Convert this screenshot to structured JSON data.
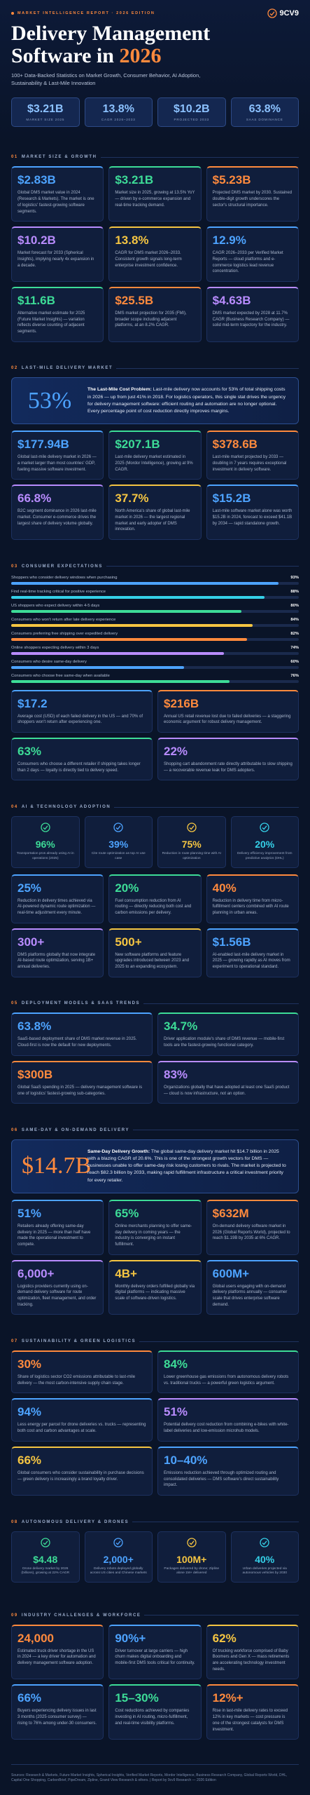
{
  "header": {
    "eyebrow": "MARKET INTELLIGENCE REPORT · 2026 EDITION",
    "logo": "9CV9",
    "title": "Delivery Management Software in",
    "title_year": "2026",
    "subtitle": "100+ Data-Backed Statistics on Market Growth, Consumer Behavior, AI Adoption, Sustainability & Last-Mile Innovation",
    "kpis": [
      {
        "value": "$3.21B",
        "label": "MARKET SIZE 2025"
      },
      {
        "value": "13.8%",
        "label": "CAGR 2026–2033"
      },
      {
        "value": "$10.2B",
        "label": "PROJECTED 2033"
      },
      {
        "value": "63.8%",
        "label": "SAAS DOMINANCE"
      }
    ]
  },
  "sections": [
    {
      "number": "01",
      "title": "MARKET SIZE & GROWTH",
      "cards": [
        {
          "value": "$2.83B",
          "color": "#4da3ff",
          "text": "Global DMS market value in 2024 (Research & Markets). The market is one of logistics' fastest-growing software segments."
        },
        {
          "value": "$3.21B",
          "color": "#3ddc97",
          "text": "Market size in 2025, growing at 13.5% YoY — driven by e-commerce expansion and real-time tracking demand."
        },
        {
          "value": "$5.23B",
          "color": "#ff8a3d",
          "text": "Projected DMS market by 2030. Sustained double-digit growth underscores the sector's structural importance."
        },
        {
          "value": "$10.2B",
          "color": "#b98cff",
          "text": "Market forecast for 2033 (Spherical Insights), implying nearly 4x expansion in a decade."
        },
        {
          "value": "13.8%",
          "color": "#f5c542",
          "text": "CAGR for DMS market 2026–2033. Consistent growth signals long-term enterprise investment confidence."
        },
        {
          "value": "12.9%",
          "color": "#4da3ff",
          "text": "CAGR 2026–2033 per Verified Market Reports — cloud platforms and e-commerce logistics lead revenue concentration."
        },
        {
          "value": "$11.6B",
          "color": "#3ddc97",
          "text": "Alternative market estimate for 2025 (Future Market Insights) — variation reflects diverse counting of adjacent segments."
        },
        {
          "value": "$25.5B",
          "color": "#ff8a3d",
          "text": "DMS market projection for 2035 (FMI), broader scope including adjacent platforms, at an 8.2% CAGR."
        },
        {
          "value": "$4.63B",
          "color": "#b98cff",
          "text": "DMS market expected by 2028 at 11.7% CAGR (Business Research Company) — solid mid-term trajectory for the industry."
        }
      ]
    },
    {
      "number": "02",
      "title": "LAST-MILE DELIVERY MARKET",
      "callout": {
        "big": "53%",
        "color": "#4da3ff",
        "lead": "The Last-Mile Cost Problem:",
        "text": "Last-mile delivery now accounts for 53% of total shipping costs in 2026 — up from just 41% in 2018. For logistics operators, this single stat drives the urgency for delivery management software: efficient routing and automation are no longer optional. Every percentage point of cost reduction directly improves margins."
      },
      "cards": [
        {
          "value": "$177.94B",
          "color": "#4da3ff",
          "text": "Global last-mile delivery market in 2026 — a market larger than most countries' GDP, fueling massive software investment."
        },
        {
          "value": "$207.1B",
          "color": "#3ddc97",
          "text": "Last-mile delivery market estimated in 2025 (Mordor Intelligence), growing at 9% CAGR."
        },
        {
          "value": "$378.6B",
          "color": "#ff8a3d",
          "text": "Last-mile market projected by 2033 — doubling in 7 years requires exceptional investment in delivery software."
        },
        {
          "value": "66.8%",
          "color": "#b98cff",
          "text": "B2C segment dominance in 2026 last-mile market. Consumer e-commerce drives the largest share of delivery volume globally."
        },
        {
          "value": "37.7%",
          "color": "#f5c542",
          "text": "North America's share of global last-mile market in 2026 — the largest regional market and early adopter of DMS innovation."
        },
        {
          "value": "$15.2B",
          "color": "#4da3ff",
          "text": "Last-mile software market alone was worth $15.2B in 2024, forecast to exceed $41.1B by 2034 — rapid standalone growth."
        }
      ]
    },
    {
      "number": "03",
      "title": "CONSUMER EXPECTATIONS",
      "bars": [
        {
          "label": "Shoppers who consider delivery windows when purchasing",
          "value": 93,
          "value_label": "93%",
          "color": "#4da3ff"
        },
        {
          "label": "Find real-time tracking critical for positive experience",
          "value": 88,
          "value_label": "88%",
          "color": "#35d0e8"
        },
        {
          "label": "US shoppers who expect delivery within 4-5 days",
          "value": 80,
          "value_label": "80%",
          "color": "#3ddc97"
        },
        {
          "label": "Consumers who won't return after late delivery experience",
          "value": 84,
          "value_label": "84%",
          "color": "#f5c542"
        },
        {
          "label": "Consumers preferring free shipping over expedited delivery",
          "value": 82,
          "value_label": "82%",
          "color": "#ff8a3d"
        },
        {
          "label": "Online shoppers expecting delivery within 3 days",
          "value": 74,
          "value_label": "74%",
          "color": "#b98cff"
        },
        {
          "label": "Consumers who desire same-day delivery",
          "value": 60,
          "value_label": "60%",
          "color": "#4da3ff"
        },
        {
          "label": "Consumers who choose free same-day when available",
          "value": 76,
          "value_label": "76%",
          "color": "#3ddc97"
        }
      ],
      "cards": [
        {
          "value": "$17.2",
          "color": "#4da3ff",
          "text": "Average cost (USD) of each failed delivery in the US — and 70% of shoppers won't return after experiencing one."
        },
        {
          "value": "$216B",
          "color": "#ff8a3d",
          "text": "Annual US retail revenue lost due to failed deliveries — a staggering economic argument for robust delivery management."
        },
        {
          "value": "63%",
          "color": "#3ddc97",
          "text": "Consumers who choose a different retailer if shipping takes longer than 2 days — loyalty is directly tied to delivery speed."
        },
        {
          "value": "22%",
          "color": "#b98cff",
          "text": "Shopping cart abandonment rate directly attributable to slow shipping — a recoverable revenue leak for DMS adopters."
        }
      ]
    },
    {
      "number": "04",
      "title": "AI & TECHNOLOGY ADOPTION",
      "icon_stats": [
        {
          "value": "96%",
          "color": "#3ddc97",
          "label": "Transportation pros already using AI in operations (2025)"
        },
        {
          "value": "39%",
          "color": "#4da3ff",
          "label": "Cite route optimization as top AI use case"
        },
        {
          "value": "75%",
          "color": "#f5c542",
          "label": "Reduction in route planning time with AI optimization"
        },
        {
          "value": "20%",
          "color": "#35d0e8",
          "label": "Delivery efficiency improvement from predictive analytics (DHL)"
        }
      ],
      "cards": [
        {
          "value": "25%",
          "color": "#4da3ff",
          "text": "Reduction in delivery times achieved via AI-powered dynamic route optimization — real-time adjustment every minute."
        },
        {
          "value": "20%",
          "color": "#3ddc97",
          "text": "Fuel consumption reduction from AI routing — directly reducing both cost and carbon emissions per delivery."
        },
        {
          "value": "40%",
          "color": "#ff8a3d",
          "text": "Reduction in delivery time from micro-fulfillment centers combined with AI route planning in urban areas."
        },
        {
          "value": "300+",
          "color": "#b98cff",
          "text": "DMS platforms globally that now integrate AI-based route optimization, serving 1B+ annual deliveries."
        },
        {
          "value": "500+",
          "color": "#f5c542",
          "text": "New software platforms and feature upgrades introduced between 2023 and 2025 to an expanding ecosystem."
        },
        {
          "value": "$1.56B",
          "color": "#4da3ff",
          "text": "AI-enabled last-mile delivery market in 2025 — growing rapidly as AI moves from experiment to operational standard."
        }
      ]
    },
    {
      "number": "05",
      "title": "DEPLOYMENT MODELS & SAAS TRENDS",
      "cards": [
        {
          "value": "63.8%",
          "color": "#4da3ff",
          "text": "SaaS-based deployment share of DMS market revenue in 2025. Cloud-first is now the default for new deployments."
        },
        {
          "value": "34.7%",
          "color": "#3ddc97",
          "text": "Driver application module's share of DMS revenue — mobile-first tools are the fastest-growing functional category."
        },
        {
          "value": "$300B",
          "color": "#ff8a3d",
          "text": "Global SaaS spending in 2025 — delivery management software is one of logistics' fastest-growing sub-categories."
        },
        {
          "value": "83%",
          "color": "#b98cff",
          "text": "Organizations globally that have adopted at least one SaaS product — cloud is now infrastructure, not an option."
        }
      ]
    },
    {
      "number": "06",
      "title": "SAME-DAY & ON-DEMAND DELIVERY",
      "callout": {
        "big": "$14.7B",
        "color": "#ff8a3d",
        "lead": "Same-Day Delivery Growth:",
        "text": "The global same-day delivery market hit $14.7 billion in 2025 with a blazing CAGR of 20.6%. This is one of the strongest growth vectors for DMS — businesses unable to offer same-day risk losing customers to rivals. The market is projected to reach $82.3 billion by 2033, making rapid fulfillment infrastructure a critical investment priority for every retailer."
      },
      "cards": [
        {
          "value": "51%",
          "color": "#4da3ff",
          "text": "Retailers already offering same-day delivery in 2025 — more than half have made the operational investment to compete."
        },
        {
          "value": "65%",
          "color": "#3ddc97",
          "text": "Online merchants planning to offer same-day delivery in coming years — the industry is converging on instant fulfillment."
        },
        {
          "value": "$632M",
          "color": "#ff8a3d",
          "text": "On-demand delivery software market in 2026 (Global Reports World), projected to reach $1.19B by 2035 at 6% CAGR."
        },
        {
          "value": "6,000+",
          "color": "#b98cff",
          "text": "Logistics providers currently using on-demand delivery software for route optimization, fleet management, and order tracking."
        },
        {
          "value": "4B+",
          "color": "#f5c542",
          "text": "Monthly delivery orders fulfilled globally via digital platforms — indicating massive scale of software-driven logistics."
        },
        {
          "value": "600M+",
          "color": "#4da3ff",
          "text": "Global users engaging with on-demand delivery platforms annually — consumer scale that drives enterprise software demand."
        }
      ]
    },
    {
      "number": "07",
      "title": "SUSTAINABILITY & GREEN LOGISTICS",
      "cards": [
        {
          "value": "30%",
          "color": "#ff8a3d",
          "text": "Share of logistics sector CO2 emissions attributable to last-mile delivery — the most carbon-intensive supply chain stage."
        },
        {
          "value": "84%",
          "color": "#3ddc97",
          "text": "Lower greenhouse gas emissions from autonomous delivery robots vs. traditional trucks — a powerful green logistics argument."
        },
        {
          "value": "94%",
          "color": "#4da3ff",
          "text": "Less energy per parcel for drone deliveries vs. trucks — representing both cost and carbon advantages at scale."
        },
        {
          "value": "51%",
          "color": "#b98cff",
          "text": "Potential delivery cost reduction from combining e-bikes with white-label deliveries and low-emission microhub models."
        },
        {
          "value": "66%",
          "color": "#f5c542",
          "text": "Global consumers who consider sustainability in purchase decisions — green delivery is increasingly a brand loyalty driver."
        },
        {
          "value": "10–40%",
          "color": "#4da3ff",
          "text": "Emissions reduction achieved through optimized routing and consolidated deliveries — DMS software's direct sustainability impact."
        }
      ]
    },
    {
      "number": "08",
      "title": "AUTONOMOUS DELIVERY & DRONES",
      "icon_stats": [
        {
          "value": "$4.48",
          "color": "#3ddc97",
          "label": "Drone delivery market by 2026 (billions), growing at 22% CAGR"
        },
        {
          "value": "2,000+",
          "color": "#4da3ff",
          "label": "Delivery robots deployed globally across US cities and Chinese markets"
        },
        {
          "value": "100M+",
          "color": "#f5c542",
          "label": "Packages delivered by drone; Zipline alone 1M+ delivered"
        },
        {
          "value": "40%",
          "color": "#35d0e8",
          "label": "Urban deliveries projected via autonomous vehicles by 2030"
        }
      ]
    },
    {
      "number": "09",
      "title": "INDUSTRY CHALLENGES & WORKFORCE",
      "cards": [
        {
          "value": "24,000",
          "color": "#ff8a3d",
          "text": "Estimated truck driver shortage in the US in 2024 — a key driver for automation and delivery management software adoption."
        },
        {
          "value": "90%+",
          "color": "#4da3ff",
          "text": "Driver turnover at large carriers — high churn makes digital onboarding and mobile-first DMS tools critical for continuity."
        },
        {
          "value": "62%",
          "color": "#f5c542",
          "text": "Of trucking workforce comprised of Baby Boomers and Gen X — mass retirements are accelerating technology investment needs."
        },
        {
          "value": "66%",
          "color": "#4da3ff",
          "text": "Buyers experiencing delivery issues in last 3 months (2025 consumer survey) — rising to 76% among under-30 consumers."
        },
        {
          "value": "15–30%",
          "color": "#3ddc97",
          "text": "Cost reductions achieved by companies investing in AI routing, micro-fulfillment, and real-time visibility platforms."
        },
        {
          "value": "12%+",
          "color": "#ff8a3d",
          "text": "Rise in last-mile delivery rates to exceed 12% in key markets — cost pressure is one of the strongest catalysts for DMS investment."
        }
      ]
    }
  ],
  "footer": "Sources: Research & Markets, Future Market Insights, Spherical Insights, Verified Market Reports, Mordor Intelligence, Business Research Company, Global Reports World, DHL, Capital One Shopping, CarbonBrief, PipeDream, Zipline, Grand View Research & others. | Report by 9cv9 Research — 2026 Edition"
}
